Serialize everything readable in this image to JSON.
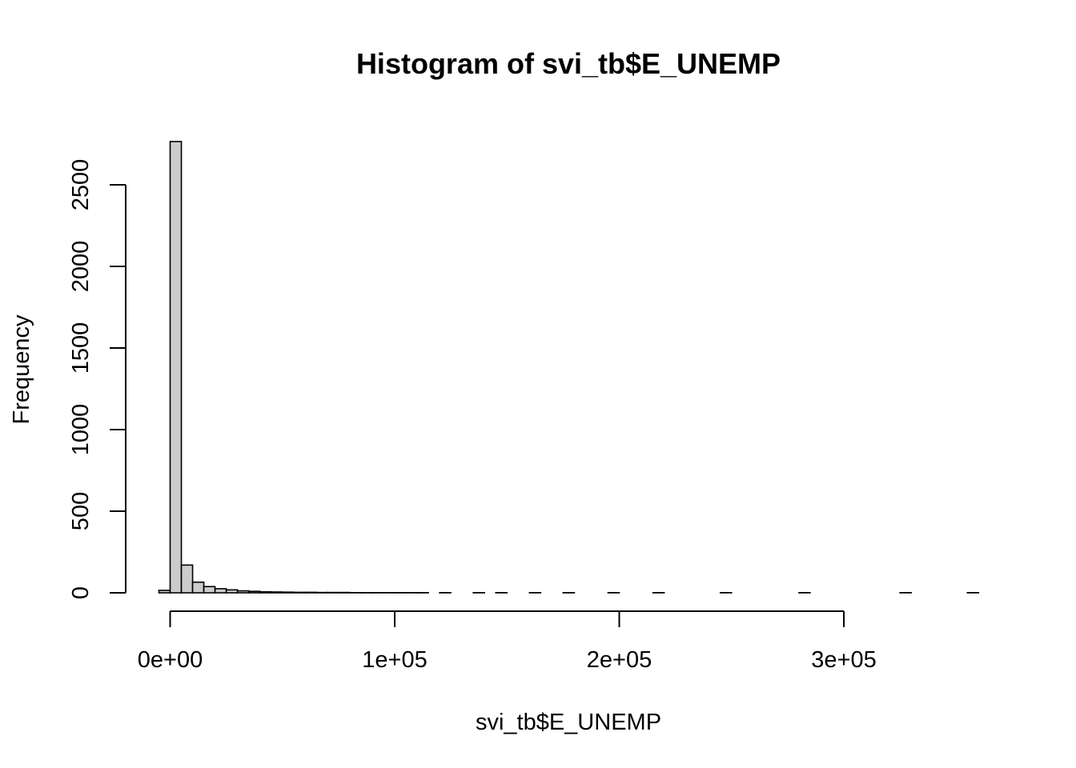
{
  "chart_data": {
    "type": "bar",
    "title": "Histogram of svi_tb$E_UNEMP",
    "xlabel": "svi_tb$E_UNEMP",
    "ylabel": "Frequency",
    "bin_width": 5000,
    "x_start": -5000,
    "bin_count": 73,
    "counts": {
      "0": 15,
      "1": 2765,
      "2": 170,
      "3": 65,
      "4": 38,
      "5": 25,
      "6": 18,
      "7": 12,
      "8": 9,
      "9": 6,
      "10": 5,
      "11": 4,
      "12": 3,
      "13": 3,
      "14": 2,
      "15": 2,
      "16": 2,
      "17": 1,
      "18": 1,
      "19": 1,
      "20": 1,
      "21": 1,
      "22": 1,
      "23": 1,
      "25": 1,
      "28": 1,
      "30": 1,
      "33": 1,
      "36": 1,
      "40": 1,
      "44": 1,
      "50": 1,
      "57": 1,
      "66": 1,
      "72": 1
    },
    "x_ticks": [
      0,
      100000,
      200000,
      300000
    ],
    "x_tick_labels": [
      "0e+00",
      "1e+05",
      "2e+05",
      "3e+05"
    ],
    "y_ticks": [
      0,
      500,
      1000,
      1500,
      2000,
      2500
    ],
    "y_tick_labels": [
      "0",
      "500",
      "1000",
      "1500",
      "2000",
      "2500"
    ],
    "xlim": [
      -5000,
      360000
    ],
    "ylim": [
      0,
      2765
    ],
    "grid": false,
    "legend": "none",
    "colors": {
      "bar_fill": "#cccccc",
      "bar_stroke": "#000000",
      "axis": "#000000",
      "background": "#ffffff"
    }
  }
}
